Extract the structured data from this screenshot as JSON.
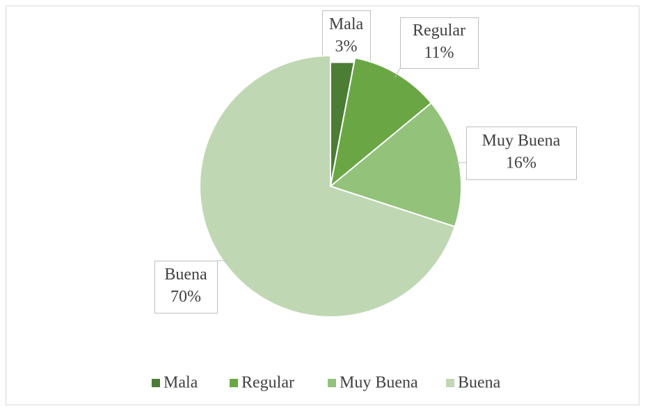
{
  "chart_data": {
    "type": "pie",
    "categories": [
      "Mala",
      "Regular",
      "Muy Buena",
      "Buena"
    ],
    "values": [
      3,
      11,
      16,
      70
    ],
    "value_labels": [
      "3%",
      "11%",
      "16%",
      "70%"
    ],
    "colors": [
      "#4b7d34",
      "#6aa744",
      "#93c27b",
      "#bfd8b3"
    ],
    "legend": "bottom"
  }
}
